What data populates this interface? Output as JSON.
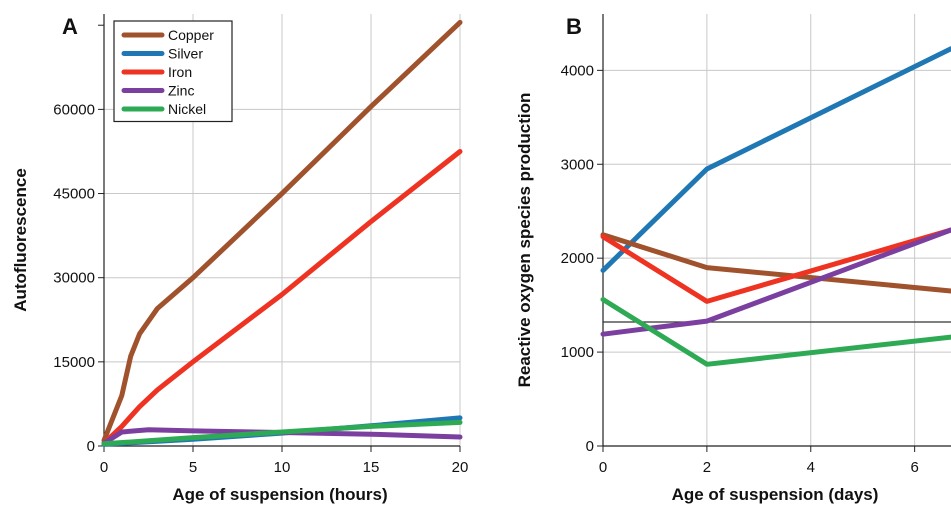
{
  "panels": [
    {
      "label": "A"
    },
    {
      "label": "B"
    }
  ],
  "chart_data": [
    {
      "type": "line",
      "panel": "A",
      "xlabel": "Age of suspension (hours)",
      "ylabel": "Autofluorescence",
      "xlim": [
        0,
        20
      ],
      "ylim": [
        0,
        77000
      ],
      "xticks": [
        0,
        5,
        10,
        15,
        20
      ],
      "yticks": [
        0,
        15000,
        30000,
        45000,
        60000
      ],
      "xtick_labels": [
        "0",
        "5",
        "10",
        "15",
        "20"
      ],
      "ytick_labels": [
        "0",
        "15000",
        "30000",
        "45000",
        "60000"
      ],
      "grid": true,
      "legend": "top-left",
      "series": [
        {
          "name": "Copper",
          "color": "#a0522d",
          "x": [
            0,
            1,
            1.5,
            2,
            3,
            5,
            10,
            15,
            20
          ],
          "y": [
            1000,
            9000,
            16000,
            20000,
            24500,
            30000,
            45000,
            60500,
            75500
          ]
        },
        {
          "name": "Silver",
          "color": "#1f77b4",
          "x": [
            0,
            5,
            10,
            15,
            20
          ],
          "y": [
            300,
            1200,
            2300,
            3600,
            5000
          ]
        },
        {
          "name": "Iron",
          "color": "#ee3322",
          "x": [
            0,
            1,
            2,
            3,
            5,
            10,
            15,
            20
          ],
          "y": [
            500,
            3500,
            7000,
            10000,
            15000,
            27000,
            40000,
            52500
          ]
        },
        {
          "name": "Zinc",
          "color": "#7b3fa0",
          "x": [
            0,
            1,
            2.5,
            5,
            10,
            15,
            20
          ],
          "y": [
            500,
            2500,
            2900,
            2700,
            2400,
            2100,
            1600
          ]
        },
        {
          "name": "Nickel",
          "color": "#2eaa55",
          "x": [
            0,
            5,
            10,
            15,
            20
          ],
          "y": [
            400,
            1500,
            2500,
            3500,
            4200
          ]
        }
      ]
    },
    {
      "type": "line",
      "panel": "B",
      "xlabel": "Age of suspension (days)",
      "ylabel": "Reactive oxygen species production",
      "xlim": [
        0,
        6.7
      ],
      "ylim": [
        0,
        4600
      ],
      "xticks": [
        0,
        2,
        4,
        6
      ],
      "yticks": [
        0,
        1000,
        2000,
        3000,
        4000
      ],
      "xtick_labels": [
        "0",
        "2",
        "4",
        "6"
      ],
      "ytick_labels": [
        "0",
        "1000",
        "2000",
        "3000",
        "4000"
      ],
      "reference_line_y": 1320,
      "grid": true,
      "series": [
        {
          "color": "#1f77b4",
          "x": [
            0,
            2,
            6.7
          ],
          "y": [
            1870,
            2950,
            4230
          ]
        },
        {
          "color": "#a0522d",
          "x": [
            0,
            2,
            6.7
          ],
          "y": [
            2250,
            1900,
            1650
          ]
        },
        {
          "color": "#ee3322",
          "x": [
            0,
            2,
            6.7
          ],
          "y": [
            2230,
            1540,
            2300
          ]
        },
        {
          "color": "#7b3fa0",
          "x": [
            0,
            2,
            6.7
          ],
          "y": [
            1190,
            1330,
            2300
          ]
        },
        {
          "color": "#2eaa55",
          "x": [
            0,
            2,
            6.7
          ],
          "y": [
            1560,
            870,
            1160
          ]
        }
      ]
    }
  ]
}
